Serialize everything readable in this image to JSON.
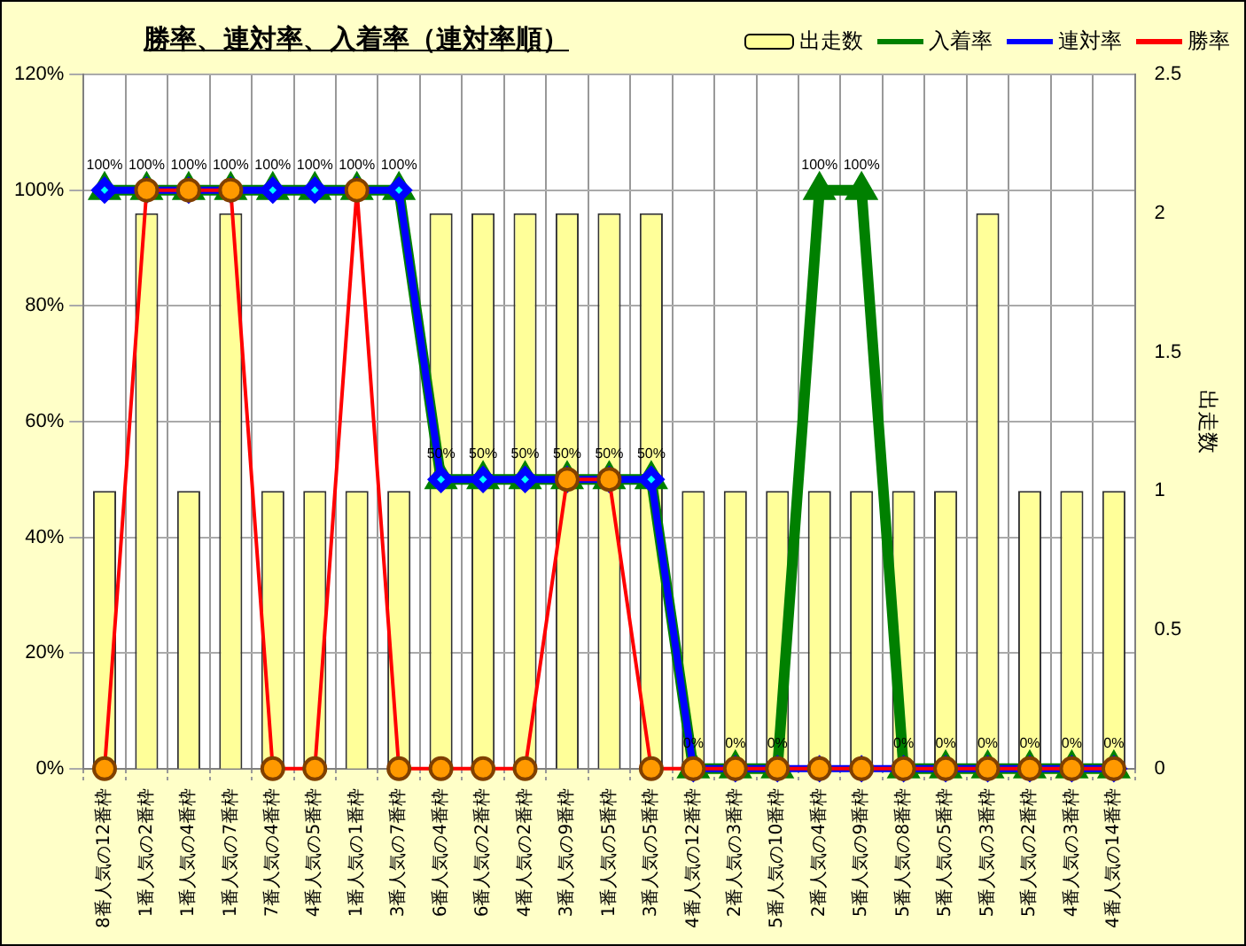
{
  "chart_data": {
    "type": "bar",
    "title": "勝率、連対率、入着率（連対率順）",
    "y2label": "出走数",
    "categories": [
      "8番人気の12番枠",
      "1番人気の2番枠",
      "1番人気の4番枠",
      "1番人気の7番枠",
      "7番人気の4番枠",
      "4番人気の5番枠",
      "1番人気の1番枠",
      "3番人気の7番枠",
      "6番人気の4番枠",
      "6番人気の2番枠",
      "4番人気の2番枠",
      "3番人気の9番枠",
      "1番人気の5番枠",
      "3番人気の5番枠",
      "4番人気の12番枠",
      "2番人気の3番枠",
      "5番人気の10番枠",
      "2番人気の4番枠",
      "5番人気の9番枠",
      "5番人気の8番枠",
      "5番人気の5番枠",
      "5番人気の3番枠",
      "5番人気の2番枠",
      "4番人気の3番枠",
      "4番人気の14番枠"
    ],
    "series": [
      {
        "name": "出走数",
        "axis": "y2",
        "color": "#ffff99",
        "values": [
          1,
          2,
          1,
          2,
          1,
          1,
          1,
          1,
          2,
          2,
          2,
          2,
          2,
          2,
          1,
          1,
          1,
          1,
          1,
          1,
          1,
          2,
          1,
          1,
          1
        ]
      },
      {
        "name": "入着率",
        "type": "line",
        "marker": "triangle",
        "color": "#008000",
        "values": [
          100,
          100,
          100,
          100,
          100,
          100,
          100,
          100,
          50,
          50,
          50,
          50,
          50,
          50,
          0,
          0,
          0,
          100,
          100,
          0,
          0,
          0,
          0,
          0,
          0
        ],
        "value_labels": [
          "100%",
          "100%",
          "100%",
          "100%",
          "100%",
          "100%",
          "100%",
          "100%",
          "50%",
          "50%",
          "50%",
          "50%",
          "50%",
          "50%",
          "0%",
          "0%",
          "0%",
          "100%",
          "100%",
          "0%",
          "0%",
          "0%",
          "0%",
          "0%",
          "0%"
        ]
      },
      {
        "name": "連対率",
        "type": "line",
        "marker": "diamond",
        "color": "#0000ff",
        "values": [
          100,
          100,
          100,
          100,
          100,
          100,
          100,
          100,
          50,
          50,
          50,
          50,
          50,
          50,
          0,
          0,
          0,
          0,
          0,
          0,
          0,
          0,
          0,
          0,
          0
        ]
      },
      {
        "name": "勝率",
        "type": "line",
        "marker": "circle",
        "color": "#ff0000",
        "values": [
          0,
          100,
          100,
          100,
          0,
          0,
          100,
          0,
          0,
          0,
          0,
          50,
          50,
          0,
          0,
          0,
          0,
          0,
          0,
          0,
          0,
          0,
          0,
          0,
          0
        ]
      }
    ],
    "ylim": [
      0,
      120
    ],
    "yticks": [
      {
        "value": 0,
        "label": "0%"
      },
      {
        "value": 20,
        "label": "20%"
      },
      {
        "value": 40,
        "label": "40%"
      },
      {
        "value": 60,
        "label": "60%"
      },
      {
        "value": 80,
        "label": "80%"
      },
      {
        "value": 100,
        "label": "100%"
      },
      {
        "value": 120,
        "label": "120%"
      }
    ],
    "y2lim": [
      0,
      2.5
    ],
    "y2ticks": [
      0,
      0.5,
      1,
      1.5,
      2,
      2.5
    ],
    "grid": true,
    "legend": "top right"
  }
}
